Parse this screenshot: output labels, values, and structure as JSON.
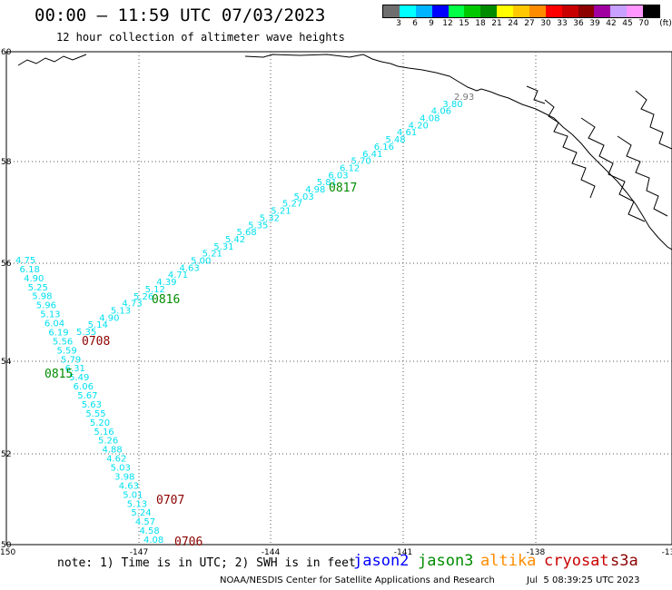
{
  "header": {
    "title": "00:00 – 11:59 UTC 07/03/2023",
    "subtitle": "12 hour collection of altimeter wave heights"
  },
  "colorbar": {
    "colors": [
      "#6e6e6e",
      "#00ffff",
      "#00b4ff",
      "#0000ff",
      "#00ff46",
      "#00c800",
      "#008c00",
      "#ffff00",
      "#ffc800",
      "#ff8c00",
      "#ff0000",
      "#c80000",
      "#8c0000",
      "#a000a0",
      "#c8a0ff",
      "#ff96ff",
      "#000000"
    ],
    "labels": [
      "3",
      "6",
      "9",
      "12",
      "15",
      "18",
      "21",
      "24",
      "27",
      "30",
      "33",
      "36",
      "39",
      "42",
      "45",
      "70",
      "(ft)"
    ]
  },
  "map": {
    "lon_ticks": [
      "-150",
      "-147",
      "-144",
      "-141",
      "-138",
      "-13"
    ],
    "lat_ticks": [
      "60",
      "58",
      "56",
      "54",
      "52",
      "50"
    ],
    "track_color": "#00e0f0",
    "land_color": "#000000",
    "track_ne_values": [
      "2.93",
      "3.80",
      "4.06",
      "4.08",
      "4.20",
      "4.61",
      "5.48",
      "6.16",
      "6.41",
      "5.70",
      "6.12",
      "6.03",
      "5.81",
      "4.98",
      "5.03",
      "5.27",
      "5.21",
      "5.32",
      "5.35",
      "5.68",
      "5.42",
      "5.31",
      "5.21",
      "5.00",
      "4.63",
      "4.71",
      "4.39",
      "5.12",
      "5.26",
      "4.73",
      "5.13",
      "4.90",
      "5.14",
      "5.35"
    ],
    "track_sw_values": [
      "4.75",
      "6.18",
      "4.90",
      "5.25",
      "5.98",
      "5.96",
      "5.13",
      "6.04",
      "6.19",
      "5.56",
      "5.59",
      "5.79",
      "6.31",
      "5.49",
      "6.06",
      "5.67",
      "5.63",
      "5.55",
      "5.20",
      "5.16",
      "5.26",
      "4.88",
      "4.62",
      "5.03",
      "3.98",
      "4.63",
      "5.01",
      "5.13",
      "5.24",
      "4.57",
      "4.58",
      "4.08"
    ],
    "time_labels": [
      {
        "text": "0817",
        "color": "#008c00"
      },
      {
        "text": "0816",
        "color": "#008c00"
      },
      {
        "text": "0815",
        "color": "#008c00"
      },
      {
        "text": "0708",
        "color": "#8c0000"
      },
      {
        "text": "0707",
        "color": "#8c0000"
      },
      {
        "text": "0706",
        "color": "#8c0000"
      }
    ]
  },
  "footer": {
    "note": "note: 1) Time is in UTC; 2) SWH is in feet",
    "satellites": [
      {
        "name": "jason2",
        "color": "#0000ff"
      },
      {
        "name": "jason3",
        "color": "#008c00"
      },
      {
        "name": "altika",
        "color": "#ff8c00"
      },
      {
        "name": "cryosat",
        "color": "#c80000"
      },
      {
        "name": "s3a",
        "color": "#8c0000"
      }
    ],
    "credit": "NOAA/NESDIS Center for Satellite Applications and Research",
    "timestamp": "Jul  5 08:39:25 UTC 2023"
  }
}
